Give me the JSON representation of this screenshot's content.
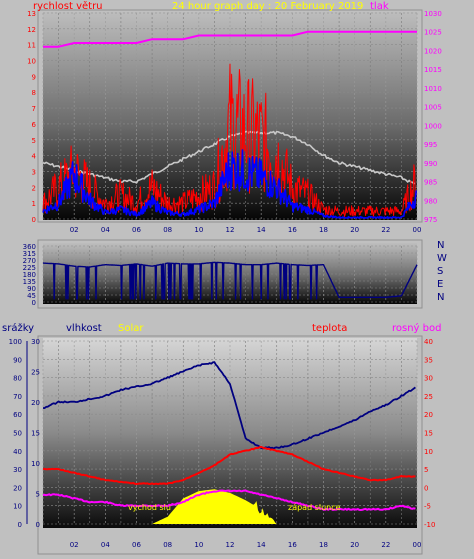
{
  "header": {
    "wind_label": "rychlost větru",
    "title": "24 hour graph day : 20 February 2019",
    "pressure_label": "tlak"
  },
  "bottom_header": {
    "rain_label": "srážky",
    "humidity_label": "vlhkost",
    "solar_label": "Solar",
    "temp_label": "teplota",
    "dew_label": "rosný bod"
  },
  "annotations": {
    "sunrise": "vychod slu",
    "sunset": "západ slunce"
  },
  "x_ticks": [
    "02",
    "04",
    "06",
    "08",
    "10",
    "12",
    "14",
    "16",
    "18",
    "20",
    "22",
    "00"
  ],
  "colors": {
    "wind_gust": "#ff0000",
    "wind_avg": "#0000ff",
    "pressure": "#ff00ff",
    "temperature_top": "#c8c8c8",
    "direction": "#000080",
    "humidity": "#000080",
    "temperature": "#ff0000",
    "dew_point": "#ff00ff",
    "solar": "#ffff00"
  },
  "chart_data": [
    {
      "type": "line",
      "title": "24 hour graph day : 20 February 2019",
      "x_unit_hours": [
        0,
        1,
        2,
        3,
        4,
        5,
        6,
        7,
        8,
        9,
        10,
        11,
        12,
        13,
        14,
        15,
        16,
        17,
        18,
        19,
        20,
        21,
        22,
        23,
        24
      ],
      "left_axis": {
        "label": "rychlost větru",
        "ylim": [
          0,
          13
        ],
        "ticks": [
          0,
          1,
          2,
          3,
          4,
          5,
          6,
          7,
          8,
          9,
          10,
          11,
          12,
          13
        ]
      },
      "right_axis": {
        "label": "tlak",
        "ylim": [
          975,
          1030
        ],
        "ticks": [
          975,
          980,
          985,
          990,
          995,
          1000,
          1005,
          1010,
          1015,
          1020,
          1025,
          1030
        ]
      },
      "series": [
        {
          "name": "tlak",
          "axis": "right",
          "values": [
            1021,
            1021,
            1022,
            1022,
            1022,
            1022,
            1022,
            1023,
            1023,
            1023,
            1024,
            1024,
            1024,
            1024,
            1024,
            1024,
            1024,
            1025,
            1025,
            1025,
            1025,
            1025,
            1025,
            1025,
            1025
          ]
        },
        {
          "name": "gust",
          "axis": "left",
          "values": [
            1,
            2,
            3,
            2,
            1,
            1.5,
            1,
            2,
            1,
            1,
            1.5,
            2,
            6,
            5.5,
            5,
            4,
            2,
            1.5,
            0.6,
            0.5,
            0.5,
            0.5,
            0.5,
            0.5,
            2.5
          ]
        },
        {
          "name": "avg",
          "axis": "left",
          "values": [
            0.5,
            1,
            2.8,
            1.2,
            0.4,
            0.6,
            0.3,
            1,
            0.4,
            0.3,
            0.6,
            1,
            3.3,
            3,
            2.6,
            2,
            0.8,
            0.6,
            0.2,
            0.1,
            0.1,
            0.1,
            0.1,
            0.1,
            1.5
          ]
        },
        {
          "axis": "right",
          "values": [
            990,
            989,
            988,
            987,
            986,
            985,
            985,
            987,
            989,
            991,
            993,
            995,
            997,
            998,
            998,
            998,
            997,
            995,
            992,
            990,
            989,
            988,
            987,
            986,
            984
          ]
        }
      ]
    },
    {
      "type": "scatter",
      "ylim": [
        0,
        360
      ],
      "yticks": [
        0,
        45,
        90,
        135,
        180,
        225,
        270,
        315,
        360
      ],
      "direction_labels": [
        "N",
        "W",
        "S",
        "E",
        "N"
      ],
      "x_unit_hours": [
        0,
        1,
        2,
        3,
        4,
        5,
        6,
        7,
        8,
        9,
        10,
        11,
        12,
        13,
        14,
        15,
        16,
        17,
        18,
        19,
        20,
        21,
        22,
        23,
        24
      ],
      "values": [
        250,
        245,
        230,
        225,
        240,
        235,
        245,
        230,
        250,
        245,
        245,
        255,
        250,
        240,
        240,
        250,
        240,
        235,
        240,
        30,
        30,
        30,
        30,
        40,
        240
      ]
    },
    {
      "type": "line",
      "x_unit_hours": [
        0,
        1,
        2,
        3,
        4,
        5,
        6,
        7,
        8,
        9,
        10,
        11,
        12,
        13,
        14,
        15,
        16,
        17,
        18,
        19,
        20,
        21,
        22,
        23,
        24
      ],
      "rain_axis": {
        "label": "srážky",
        "ylim": [
          0,
          100
        ],
        "ticks": [
          0,
          10,
          20,
          30,
          40,
          50,
          60,
          70,
          80,
          90,
          100
        ]
      },
      "humidity_axis": {
        "label": "vlhkost",
        "ylim": [
          0,
          30
        ],
        "ticks": [
          0,
          5,
          10,
          15,
          20,
          25,
          30
        ]
      },
      "temp_axis": {
        "label": "teplota",
        "ylim": [
          -10,
          40
        ],
        "ticks": [
          -10,
          -5,
          0,
          5,
          10,
          15,
          20,
          25,
          30,
          35,
          40
        ]
      },
      "series": [
        {
          "name": "vlhkost",
          "axis": "humidity",
          "values": [
            19,
            20,
            20,
            20.5,
            21,
            22,
            22.5,
            23,
            24,
            25,
            26,
            26.5,
            23,
            14,
            12.5,
            12.5,
            13,
            14,
            15,
            16,
            17,
            18.5,
            19.5,
            21,
            22.5
          ]
        },
        {
          "name": "teplota",
          "axis": "temp",
          "values": [
            5,
            5,
            4,
            3,
            2,
            1.5,
            1,
            1,
            1,
            2,
            4,
            6,
            9,
            10,
            11,
            10,
            9,
            7,
            5,
            4,
            3,
            2,
            2,
            3,
            3
          ]
        },
        {
          "name": "rosný bod",
          "axis": "temp",
          "values": [
            -2,
            -2,
            -3,
            -4,
            -4,
            -5,
            -5,
            -5,
            -5,
            -4,
            -2,
            -1,
            -1,
            -1,
            -2,
            -3,
            -4,
            -5,
            -6,
            -6,
            -6,
            -6,
            -6,
            -5,
            -6
          ]
        },
        {
          "name": "Solar",
          "axis": "rain",
          "values": [
            0,
            0,
            0,
            0,
            0,
            0,
            0,
            0,
            4,
            14,
            18,
            19,
            17,
            13,
            8,
            0,
            0,
            0,
            0,
            0,
            0,
            0,
            0,
            0,
            0
          ]
        }
      ]
    }
  ]
}
